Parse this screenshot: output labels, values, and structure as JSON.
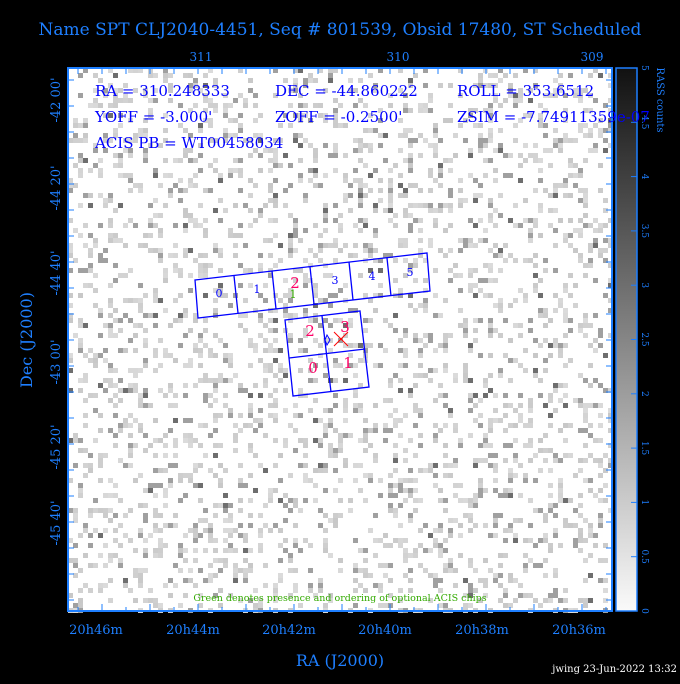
{
  "title": "Name SPT CLJ2040-4451, Seq # 801539, Obsid 17480, ST Scheduled",
  "info": {
    "ra": "RA = 310.248333",
    "dec": "DEC = -44.860222",
    "roll": "ROLL = 353.6512",
    "yoff": "YOFF =  -3.000'",
    "zoff": "ZOFF = -0.2500'",
    "zsim": "ZSIM = -7.74911359e-07",
    "acis_pb": "ACIS PB = WT00458034"
  },
  "note": "Green denotes presence and ordering of optional ACIS chips",
  "footer": "jwing 23-Jun-2022 13:32",
  "colors": {
    "axis": "#1e7fff",
    "overlay": "#0000ff",
    "chip_required": "#ff0066",
    "chip_optional": "#33aa00",
    "aimpoint": "#ff0000"
  },
  "chart_data": {
    "type": "heatmap",
    "xlabel": "RA (J2000)",
    "ylabel": "Dec (J2000)",
    "x_ticks": [
      "20h46m",
      "20h44m",
      "20h42m",
      "20h40m",
      "20h38m",
      "20h36m"
    ],
    "x_top_ticks": [
      "311",
      "310",
      "309"
    ],
    "y_ticks": [
      "-42 00'",
      "-44 20'",
      "-44 40'",
      "-43 00'",
      "-45 20'",
      "-45 40'"
    ],
    "colorbar": {
      "label": "RASS counts",
      "range": [
        0,
        5
      ],
      "ticks": [
        "0",
        "0.5",
        "1",
        "1.5",
        "2",
        "2.5",
        "3",
        "3.5",
        "4",
        "4.5",
        "5"
      ]
    },
    "acis_s_chips": [
      "0",
      "1",
      "2",
      "3",
      "4",
      "5"
    ],
    "acis_s_optional_label": "1",
    "acis_i_chips": [
      "2",
      "3",
      "0",
      "1"
    ]
  }
}
